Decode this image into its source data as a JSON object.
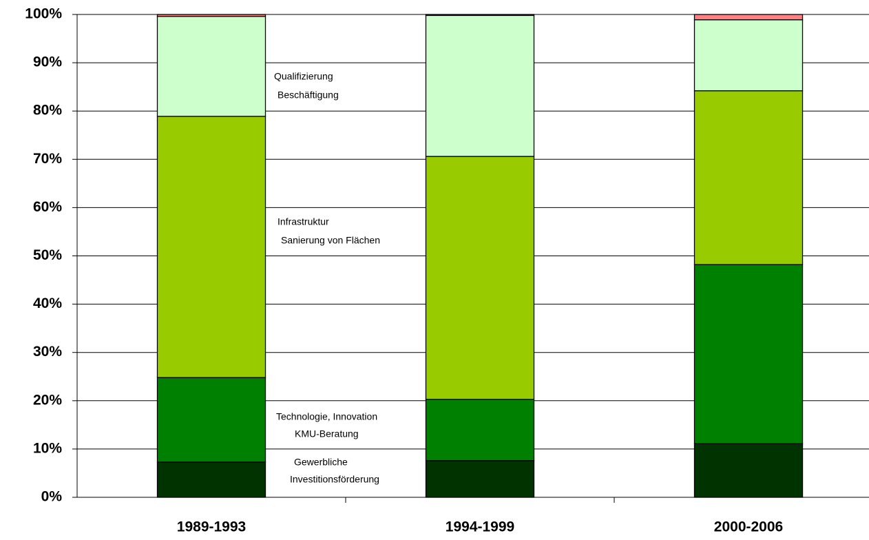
{
  "chart_data": {
    "type": "stacked_bar",
    "categories": [
      "1989-1993",
      "1994-1999",
      "2000-2006"
    ],
    "series": [
      {
        "name": [
          "Gewerbliche",
          "Investitionsförderung"
        ],
        "color": "#003300",
        "values": [
          7.3,
          7.6,
          11.1
        ]
      },
      {
        "name": [
          "Technologie, Innovation",
          "KMU-Beratung"
        ],
        "color": "#008000",
        "values": [
          17.5,
          12.7,
          37.1
        ]
      },
      {
        "name": [
          "Infrastruktur",
          "Sanierung von Flächen"
        ],
        "color": "#99cc00",
        "values": [
          54.1,
          50.3,
          36.0
        ]
      },
      {
        "name": [
          "Qualifizierung",
          "Beschäftigung"
        ],
        "color": "#ccffcc",
        "values": [
          20.7,
          29.2,
          14.7
        ]
      },
      {
        "color": "#ff8080",
        "values": [
          0.4,
          0.2,
          1.1
        ]
      }
    ],
    "ylim": [
      0,
      100
    ],
    "yticks": [
      {
        "value": 0,
        "label": "0%"
      },
      {
        "value": 10,
        "label": "10%"
      },
      {
        "value": 20,
        "label": "20%"
      },
      {
        "value": 30,
        "label": "30%"
      },
      {
        "value": 40,
        "label": "40%"
      },
      {
        "value": 50,
        "label": "50%"
      },
      {
        "value": 60,
        "label": "60%"
      },
      {
        "value": 70,
        "label": "70%"
      },
      {
        "value": 80,
        "label": "80%"
      },
      {
        "value": 90,
        "label": "90%"
      },
      {
        "value": 100,
        "label": "100%"
      }
    ],
    "grid": true
  }
}
